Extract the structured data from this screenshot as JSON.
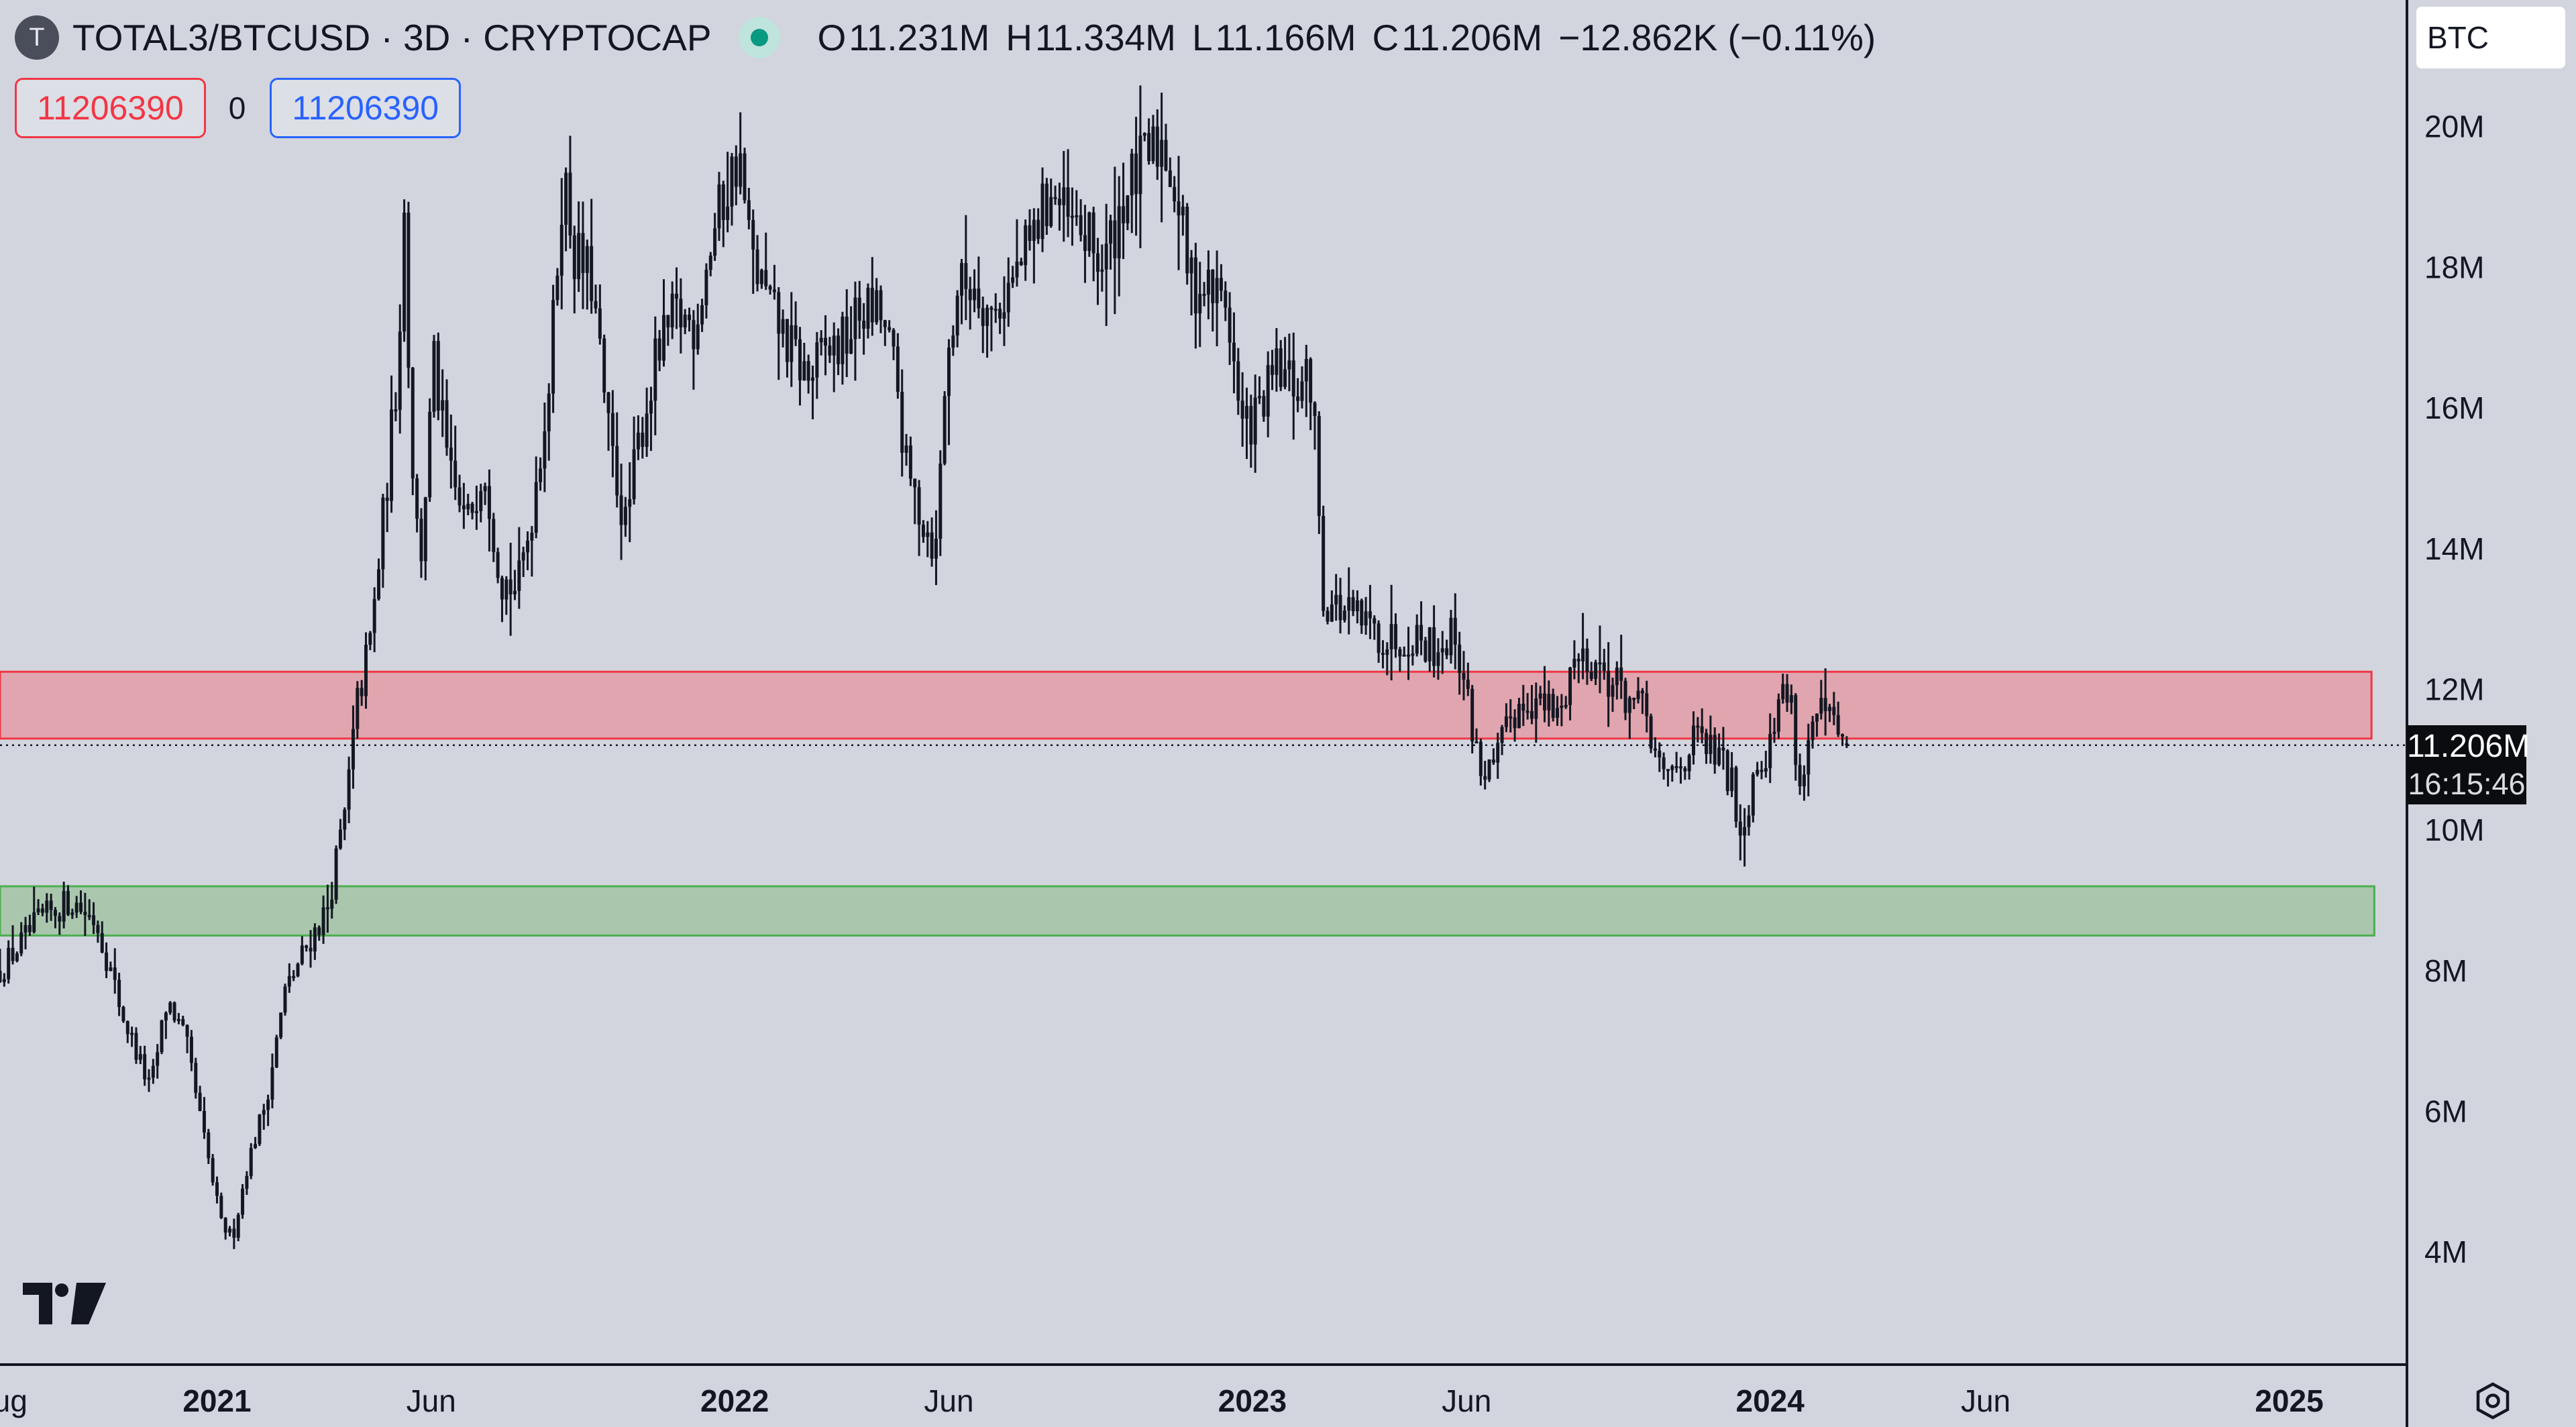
{
  "header": {
    "symbol_initial": "T",
    "title": "TOTAL3/BTCUSD · 3D · CRYPTOCAP",
    "ohlc": {
      "open_key": "O",
      "open": "11.231M",
      "high_key": "H",
      "high": "11.334M",
      "low_key": "L",
      "low": "11.166M",
      "close_key": "C",
      "close": "11.206M",
      "change": "−12.862K (−0.11%)"
    }
  },
  "order_panel": {
    "sell_price": "11206390",
    "spread": "0",
    "buy_price": "11206390"
  },
  "currency_button": "BTC",
  "last_price": {
    "value": "11.206M",
    "countdown": "16:15:46"
  },
  "colors": {
    "background": "#d2d5de",
    "candle": "#131722",
    "resistance_zone_fill": "#e0a5ae",
    "resistance_zone_border": "#f23645",
    "support_zone_fill": "#aac7ae",
    "support_zone_border": "#4caf50",
    "up_accent": "#089981"
  },
  "chart_data": {
    "type": "ohlc",
    "title": "TOTAL3/BTCUSD · 3D · CRYPTOCAP",
    "y_unit": "BTC",
    "ylim": [
      2400000,
      21800000
    ],
    "y_ticks": [
      {
        "value": 20000000,
        "label": "20M"
      },
      {
        "value": 18000000,
        "label": "18M"
      },
      {
        "value": 16000000,
        "label": "16M"
      },
      {
        "value": 14000000,
        "label": "14M"
      },
      {
        "value": 12000000,
        "label": "12M"
      },
      {
        "value": 10000000,
        "label": "10M"
      },
      {
        "value": 8000000,
        "label": "8M"
      },
      {
        "value": 6000000,
        "label": "6M"
      },
      {
        "value": 4000000,
        "label": "4M"
      }
    ],
    "xlim": [
      "2020-08-01",
      "2025-03-25"
    ],
    "x_ticks": [
      {
        "date": "2020-08-01",
        "label": "Aug",
        "bold": false
      },
      {
        "date": "2021-01-01",
        "label": "2021",
        "bold": true
      },
      {
        "date": "2021-06-01",
        "label": "Jun",
        "bold": false
      },
      {
        "date": "2022-01-01",
        "label": "2022",
        "bold": true
      },
      {
        "date": "2022-06-01",
        "label": "Jun",
        "bold": false
      },
      {
        "date": "2023-01-01",
        "label": "2023",
        "bold": true
      },
      {
        "date": "2023-06-01",
        "label": "Jun",
        "bold": false
      },
      {
        "date": "2024-01-01",
        "label": "2024",
        "bold": true
      },
      {
        "date": "2024-06-01",
        "label": "Jun",
        "bold": false
      },
      {
        "date": "2025-01-01",
        "label": "2025",
        "bold": true
      }
    ],
    "zones": [
      {
        "name": "resistance",
        "from": 11300000,
        "to": 12250000,
        "start": "2020-08-01",
        "end": "2025-02-28"
      },
      {
        "name": "support",
        "from": 8500000,
        "to": 9200000,
        "start": "2020-08-01",
        "end": "2025-03-02"
      }
    ],
    "close_path": [
      [
        "2020-08-01",
        8000000
      ],
      [
        "2020-08-28",
        8700000
      ],
      [
        "2020-09-20",
        9000000
      ],
      [
        "2020-10-08",
        8700000
      ],
      [
        "2020-10-26",
        7400000
      ],
      [
        "2020-11-15",
        6300000
      ],
      [
        "2020-11-27",
        7600000
      ],
      [
        "2020-12-10",
        7000000
      ],
      [
        "2020-12-22",
        5700000
      ],
      [
        "2021-01-04",
        4400000
      ],
      [
        "2021-01-12",
        4200000
      ],
      [
        "2021-01-22",
        5200000
      ],
      [
        "2021-02-05",
        6200000
      ],
      [
        "2021-02-18",
        7700000
      ],
      [
        "2021-03-04",
        8300000
      ],
      [
        "2021-03-20",
        8900000
      ],
      [
        "2021-04-01",
        10200000
      ],
      [
        "2021-04-10",
        11800000
      ],
      [
        "2021-04-20",
        12800000
      ],
      [
        "2021-04-30",
        14800000
      ],
      [
        "2021-05-08",
        16500000
      ],
      [
        "2021-05-13",
        18800000
      ],
      [
        "2021-05-18",
        15500000
      ],
      [
        "2021-05-24",
        13700000
      ],
      [
        "2021-06-03",
        16600000
      ],
      [
        "2021-06-14",
        15000000
      ],
      [
        "2021-06-26",
        14300000
      ],
      [
        "2021-07-08",
        15300000
      ],
      [
        "2021-07-20",
        13600000
      ],
      [
        "2021-08-01",
        13400000
      ],
      [
        "2021-08-10",
        14400000
      ],
      [
        "2021-08-24",
        16500000
      ],
      [
        "2021-09-02",
        19400000
      ],
      [
        "2021-09-10",
        18200000
      ],
      [
        "2021-09-22",
        17800000
      ],
      [
        "2021-10-04",
        15600000
      ],
      [
        "2021-10-16",
        14300000
      ],
      [
        "2021-10-26",
        15600000
      ],
      [
        "2021-11-07",
        16700000
      ],
      [
        "2021-11-20",
        17300000
      ],
      [
        "2021-12-04",
        17200000
      ],
      [
        "2021-12-16",
        18400000
      ],
      [
        "2021-12-26",
        19100000
      ],
      [
        "2022-01-04",
        19600000
      ],
      [
        "2022-01-12",
        18200000
      ],
      [
        "2022-01-26",
        17400000
      ],
      [
        "2022-02-08",
        16900000
      ],
      [
        "2022-02-22",
        16400000
      ],
      [
        "2022-03-06",
        16800000
      ],
      [
        "2022-03-18",
        16900000
      ],
      [
        "2022-04-01",
        17400000
      ],
      [
        "2022-04-14",
        17300000
      ],
      [
        "2022-04-25",
        16400000
      ],
      [
        "2022-05-02",
        15100000
      ],
      [
        "2022-05-14",
        14400000
      ],
      [
        "2022-05-23",
        14000000
      ],
      [
        "2022-05-29",
        16300000
      ],
      [
        "2022-06-07",
        17700000
      ],
      [
        "2022-06-20",
        17800000
      ],
      [
        "2022-07-01",
        17300000
      ],
      [
        "2022-07-16",
        17800000
      ],
      [
        "2022-07-28",
        18300000
      ],
      [
        "2022-08-12",
        19100000
      ],
      [
        "2022-08-24",
        18600000
      ],
      [
        "2022-09-06",
        18400000
      ],
      [
        "2022-09-18",
        18000000
      ],
      [
        "2022-10-02",
        19000000
      ],
      [
        "2022-10-14",
        19400000
      ],
      [
        "2022-10-30",
        19800000
      ],
      [
        "2022-11-08",
        19100000
      ],
      [
        "2022-11-18",
        17800000
      ],
      [
        "2022-11-30",
        17700000
      ],
      [
        "2022-12-14",
        17500000
      ],
      [
        "2022-12-24",
        15700000
      ],
      [
        "2023-01-05",
        15900000
      ],
      [
        "2023-01-18",
        16500000
      ],
      [
        "2023-02-02",
        16300000
      ],
      [
        "2023-02-12",
        16400000
      ],
      [
        "2023-02-20",
        13300000
      ],
      [
        "2023-03-06",
        13100000
      ],
      [
        "2023-03-22",
        12900000
      ],
      [
        "2023-04-08",
        12700000
      ],
      [
        "2023-04-24",
        12800000
      ],
      [
        "2023-05-10",
        12600000
      ],
      [
        "2023-05-24",
        12800000
      ],
      [
        "2023-06-02",
        11800000
      ],
      [
        "2023-06-10",
        10900000
      ],
      [
        "2023-06-20",
        10800000
      ],
      [
        "2023-07-02",
        11600000
      ],
      [
        "2023-07-14",
        11900000
      ],
      [
        "2023-07-28",
        11700000
      ],
      [
        "2023-08-06",
        11600000
      ],
      [
        "2023-08-14",
        12400000
      ],
      [
        "2023-08-26",
        12500000
      ],
      [
        "2023-09-08",
        12200000
      ],
      [
        "2023-09-22",
        11900000
      ],
      [
        "2023-10-06",
        11600000
      ],
      [
        "2023-10-16",
        10700000
      ],
      [
        "2023-10-28",
        10900000
      ],
      [
        "2023-11-10",
        11300000
      ],
      [
        "2023-11-26",
        11000000
      ],
      [
        "2023-12-06",
        10600000
      ],
      [
        "2023-12-12",
        9900000
      ],
      [
        "2023-12-22",
        11000000
      ],
      [
        "2024-01-02",
        11200000
      ],
      [
        "2024-01-08",
        12000000
      ],
      [
        "2024-01-16",
        11800000
      ],
      [
        "2024-01-22",
        10600000
      ],
      [
        "2024-02-01",
        11600000
      ],
      [
        "2024-02-10",
        11600000
      ],
      [
        "2024-02-19",
        11300000
      ],
      [
        "2024-02-25",
        11206000
      ]
    ],
    "last": {
      "date": "2024-02-25",
      "open": 11231000,
      "high": 11334000,
      "low": 11166000,
      "close": 11206000,
      "change": -12862,
      "change_percent": -0.11
    }
  }
}
